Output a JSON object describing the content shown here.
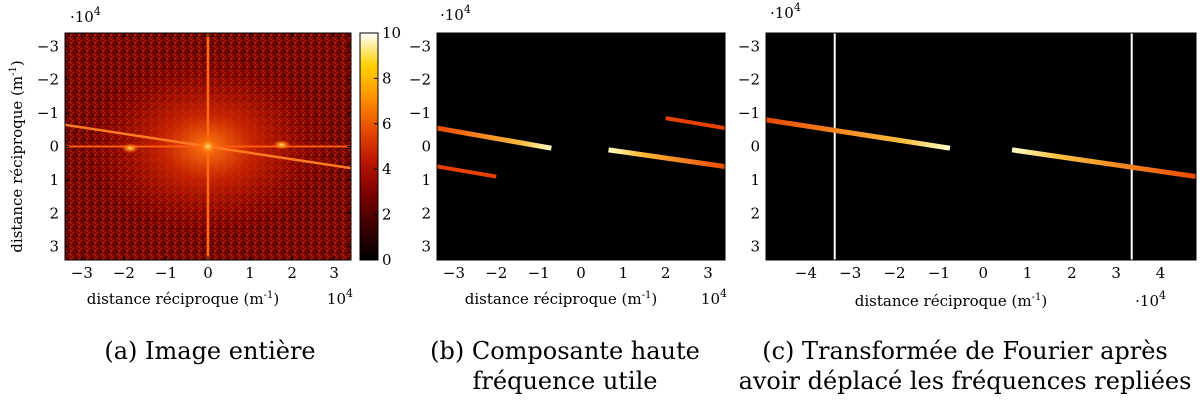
{
  "figure": {
    "panels": [
      {
        "id": "a",
        "caption": [
          "(a) Image entière"
        ],
        "xlabel": "distance réciproque (m",
        "xlabel_sup": "-1",
        "xlabel_suffix": ")",
        "ylabel": "distance réciproque (m",
        "ylabel_sup": "-1",
        "ylabel_suffix": ")",
        "x_scale": "10",
        "x_scale_exp": "4",
        "y_scale": "·10",
        "y_scale_exp": "4",
        "colorbar": {
          "ticks": [
            "0",
            "2",
            "4",
            "6",
            "8",
            "10"
          ],
          "range": [
            0,
            10
          ],
          "colormap": [
            "#000000",
            "#3a0000",
            "#7a0000",
            "#b81400",
            "#e84a00",
            "#ff9000",
            "#ffd200",
            "#ffffff"
          ]
        }
      },
      {
        "id": "b",
        "caption": [
          "(b) Composante haute",
          "fréquence utile"
        ],
        "xlabel": "distance réciproque (m",
        "xlabel_sup": "-1",
        "xlabel_suffix": ")",
        "x_scale": "10",
        "x_scale_exp": "4",
        "y_scale": "·10",
        "y_scale_exp": "4"
      },
      {
        "id": "c",
        "caption": [
          "(c) Transformée de Fourier après",
          "avoir déplacé les fréquences repliées"
        ],
        "xlabel": "distance réciproque (m",
        "xlabel_sup": "-1",
        "xlabel_suffix": ")",
        "x_scale": "·10",
        "x_scale_exp": "4",
        "y_scale": "·10",
        "y_scale_exp": "4"
      }
    ]
  },
  "chart_data": [
    {
      "type": "heatmap",
      "xlim": [
        -3.4,
        3.4
      ],
      "ylim": [
        -3.4,
        3.4
      ],
      "y_inverted": true,
      "xticks": [
        -3,
        -2,
        -1,
        0,
        1,
        2,
        3
      ],
      "xtick_labels": [
        "−3",
        "−2",
        "−1",
        "0",
        "1",
        "2",
        "3"
      ],
      "yticks": [
        -3,
        -2,
        -1,
        0,
        1,
        2,
        3
      ],
      "ytick_labels": [
        "−3",
        "−2",
        "−1",
        "0",
        "1",
        "2",
        "3"
      ],
      "features": {
        "central_peak": [
          0,
          0
        ],
        "cross_lines": {
          "x": 0,
          "y": 0
        },
        "diagonal_streak": {
          "from": [
            -3.4,
            -0.65
          ],
          "to": [
            3.4,
            0.65
          ]
        },
        "side_peaks": [
          [
            -1.85,
            0.05
          ],
          [
            1.75,
            -0.05
          ]
        ]
      }
    },
    {
      "type": "heatmap",
      "xlim": [
        -3.4,
        3.4
      ],
      "ylim": [
        -3.4,
        3.4
      ],
      "y_inverted": true,
      "xticks": [
        -3,
        -2,
        -1,
        0,
        1,
        2,
        3
      ],
      "xtick_labels": [
        "−3",
        "−2",
        "−1",
        "0",
        "1",
        "2",
        "3"
      ],
      "yticks": [
        -3,
        -2,
        -1,
        0,
        1,
        2,
        3
      ],
      "ytick_labels": [
        "−3",
        "−2",
        "−1",
        "0",
        "1",
        "2",
        "3"
      ],
      "segments": [
        {
          "from": [
            -3.4,
            -0.55
          ],
          "to": [
            -0.7,
            0.05
          ],
          "w": 5,
          "bright": true
        },
        {
          "from": [
            0.65,
            0.1
          ],
          "to": [
            3.4,
            0.6
          ],
          "w": 5,
          "bright": true
        },
        {
          "from": [
            -3.4,
            0.6
          ],
          "to": [
            -2.0,
            0.9
          ],
          "w": 4,
          "bright": false
        },
        {
          "from": [
            2.0,
            -0.85
          ],
          "to": [
            3.4,
            -0.55
          ],
          "w": 4,
          "bright": false
        }
      ]
    },
    {
      "type": "heatmap",
      "xlim": [
        -4.9,
        4.8
      ],
      "ylim": [
        -3.4,
        3.4
      ],
      "y_inverted": true,
      "xticks": [
        -4,
        -3,
        -2,
        -1,
        0,
        1,
        2,
        3,
        4
      ],
      "xtick_labels": [
        "−4",
        "−3",
        "−2",
        "−1",
        "0",
        "1",
        "2",
        "3",
        "4"
      ],
      "yticks": [
        -3,
        -2,
        -1,
        0,
        1,
        2,
        3
      ],
      "ytick_labels": [
        "−3",
        "−2",
        "−1",
        "0",
        "1",
        "2",
        "3"
      ],
      "vertical_lines": [
        -3.35,
        3.35
      ],
      "segments": [
        {
          "from": [
            -4.9,
            -0.8
          ],
          "to": [
            -0.75,
            0.05
          ],
          "w": 5,
          "bright": true
        },
        {
          "from": [
            0.65,
            0.1
          ],
          "to": [
            4.8,
            0.9
          ],
          "w": 5,
          "bright": true
        }
      ]
    }
  ]
}
